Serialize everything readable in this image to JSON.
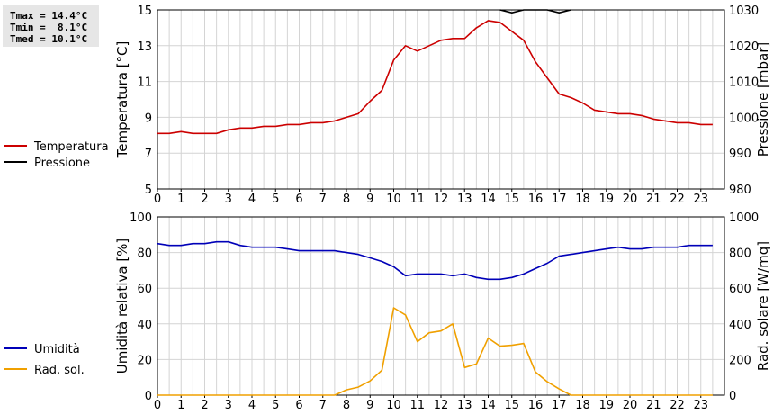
{
  "stats": {
    "tmax": "Tmax = 14.4°C",
    "tmin": "Tmin =  8.1°C",
    "tmed": "Tmed = 10.1°C"
  },
  "colors": {
    "temperatura": "#cc0000",
    "pressione": "#000000",
    "umidita": "#0000b8",
    "rad_sol": "#f0a000",
    "grid": "#d4d4d4"
  },
  "chart_data": [
    {
      "type": "line",
      "ylabel_left": "Temperatura [°C]",
      "ylabel_right": "Pressione [mbar]",
      "xlim": [
        0,
        24
      ],
      "x_ticks": [
        0,
        1,
        2,
        3,
        4,
        5,
        6,
        7,
        8,
        9,
        10,
        11,
        12,
        13,
        14,
        15,
        16,
        17,
        18,
        19,
        20,
        21,
        22,
        23
      ],
      "ylim_left": [
        5,
        15
      ],
      "yticks_left": [
        5,
        7,
        9,
        11,
        13,
        15
      ],
      "ylim_right": [
        980,
        1030
      ],
      "yticks_right": [
        980,
        990,
        1000,
        1010,
        1020,
        1030
      ],
      "grid": true,
      "legend_position": "left",
      "series": [
        {
          "name": "Temperatura",
          "axis": "left",
          "color_key": "temperatura",
          "x": [
            0,
            0.5,
            1,
            1.5,
            2,
            2.5,
            3,
            3.5,
            4,
            4.5,
            5,
            5.5,
            6,
            6.5,
            7,
            7.5,
            8,
            8.5,
            9,
            9.5,
            10,
            10.5,
            11,
            11.5,
            12,
            12.5,
            13,
            13.5,
            14,
            14.5,
            15,
            15.5,
            16,
            16.5,
            17,
            17.5,
            18,
            18.5,
            19,
            19.5,
            20,
            20.5,
            21,
            21.5,
            22,
            22.5,
            23,
            23.5
          ],
          "y": [
            8.1,
            8.1,
            8.2,
            8.1,
            8.1,
            8.1,
            8.3,
            8.4,
            8.4,
            8.5,
            8.5,
            8.6,
            8.6,
            8.7,
            8.7,
            8.8,
            9.0,
            9.2,
            9.9,
            10.5,
            12.2,
            13.0,
            12.7,
            13.0,
            13.3,
            13.4,
            13.4,
            14.0,
            14.4,
            14.3,
            13.8,
            13.3,
            12.1,
            11.2,
            10.3,
            10.1,
            9.8,
            9.4,
            9.3,
            9.2,
            9.2,
            9.1,
            8.9,
            8.8,
            8.7,
            8.7,
            8.6,
            8.6
          ]
        },
        {
          "name": "Pressione",
          "axis": "right",
          "color_key": "pressione",
          "x": [
            14.5,
            15,
            15.5,
            16,
            16.5,
            17,
            17.5
          ],
          "y": [
            1030,
            1029.2,
            1030,
            1030,
            1030,
            1029.2,
            1030
          ]
        }
      ]
    },
    {
      "type": "line",
      "ylabel_left": "Umidità relativa [%]",
      "ylabel_right": "Rad. solare [W/mq]",
      "xlim": [
        0,
        24
      ],
      "x_ticks": [
        0,
        1,
        2,
        3,
        4,
        5,
        6,
        7,
        8,
        9,
        10,
        11,
        12,
        13,
        14,
        15,
        16,
        17,
        18,
        19,
        20,
        21,
        22,
        23
      ],
      "ylim_left": [
        0,
        100
      ],
      "yticks_left": [
        0,
        20,
        40,
        60,
        80,
        100
      ],
      "ylim_right": [
        0,
        1000
      ],
      "yticks_right": [
        0,
        200,
        400,
        600,
        800,
        1000
      ],
      "grid": true,
      "legend_position": "left",
      "series": [
        {
          "name": "Umidità",
          "axis": "left",
          "color_key": "umidita",
          "x": [
            0,
            0.5,
            1,
            1.5,
            2,
            2.5,
            3,
            3.5,
            4,
            4.5,
            5,
            5.5,
            6,
            6.5,
            7,
            7.5,
            8,
            8.5,
            9,
            9.5,
            10,
            10.5,
            11,
            11.5,
            12,
            12.5,
            13,
            13.5,
            14,
            14.5,
            15,
            15.5,
            16,
            16.5,
            17,
            17.5,
            18,
            18.5,
            19,
            19.5,
            20,
            20.5,
            21,
            21.5,
            22,
            22.5,
            23,
            23.5
          ],
          "y": [
            85,
            84,
            84,
            85,
            85,
            86,
            86,
            84,
            83,
            83,
            83,
            82,
            81,
            81,
            81,
            81,
            80,
            79,
            77,
            75,
            72,
            67,
            68,
            68,
            68,
            67,
            68,
            66,
            65,
            65,
            66,
            68,
            71,
            74,
            78,
            79,
            80,
            81,
            82,
            83,
            82,
            82,
            83,
            83,
            83,
            84,
            84,
            84
          ]
        },
        {
          "name": "Rad. sol.",
          "axis": "right",
          "color_key": "rad_sol",
          "x": [
            0,
            1,
            2,
            3,
            4,
            5,
            6,
            7,
            7.5,
            8,
            8.5,
            9,
            9.5,
            10,
            10.5,
            11,
            11.5,
            12,
            12.5,
            13,
            13.5,
            14,
            14.5,
            15,
            15.5,
            16,
            16.5,
            17,
            17.5,
            18,
            19,
            20,
            21,
            22,
            23,
            23.5
          ],
          "y": [
            0,
            0,
            0,
            0,
            0,
            0,
            0,
            0,
            0,
            30,
            45,
            80,
            140,
            490,
            450,
            300,
            350,
            360,
            400,
            155,
            175,
            320,
            275,
            280,
            290,
            130,
            75,
            35,
            0,
            0,
            0,
            0,
            0,
            0,
            0,
            0
          ]
        }
      ]
    }
  ]
}
